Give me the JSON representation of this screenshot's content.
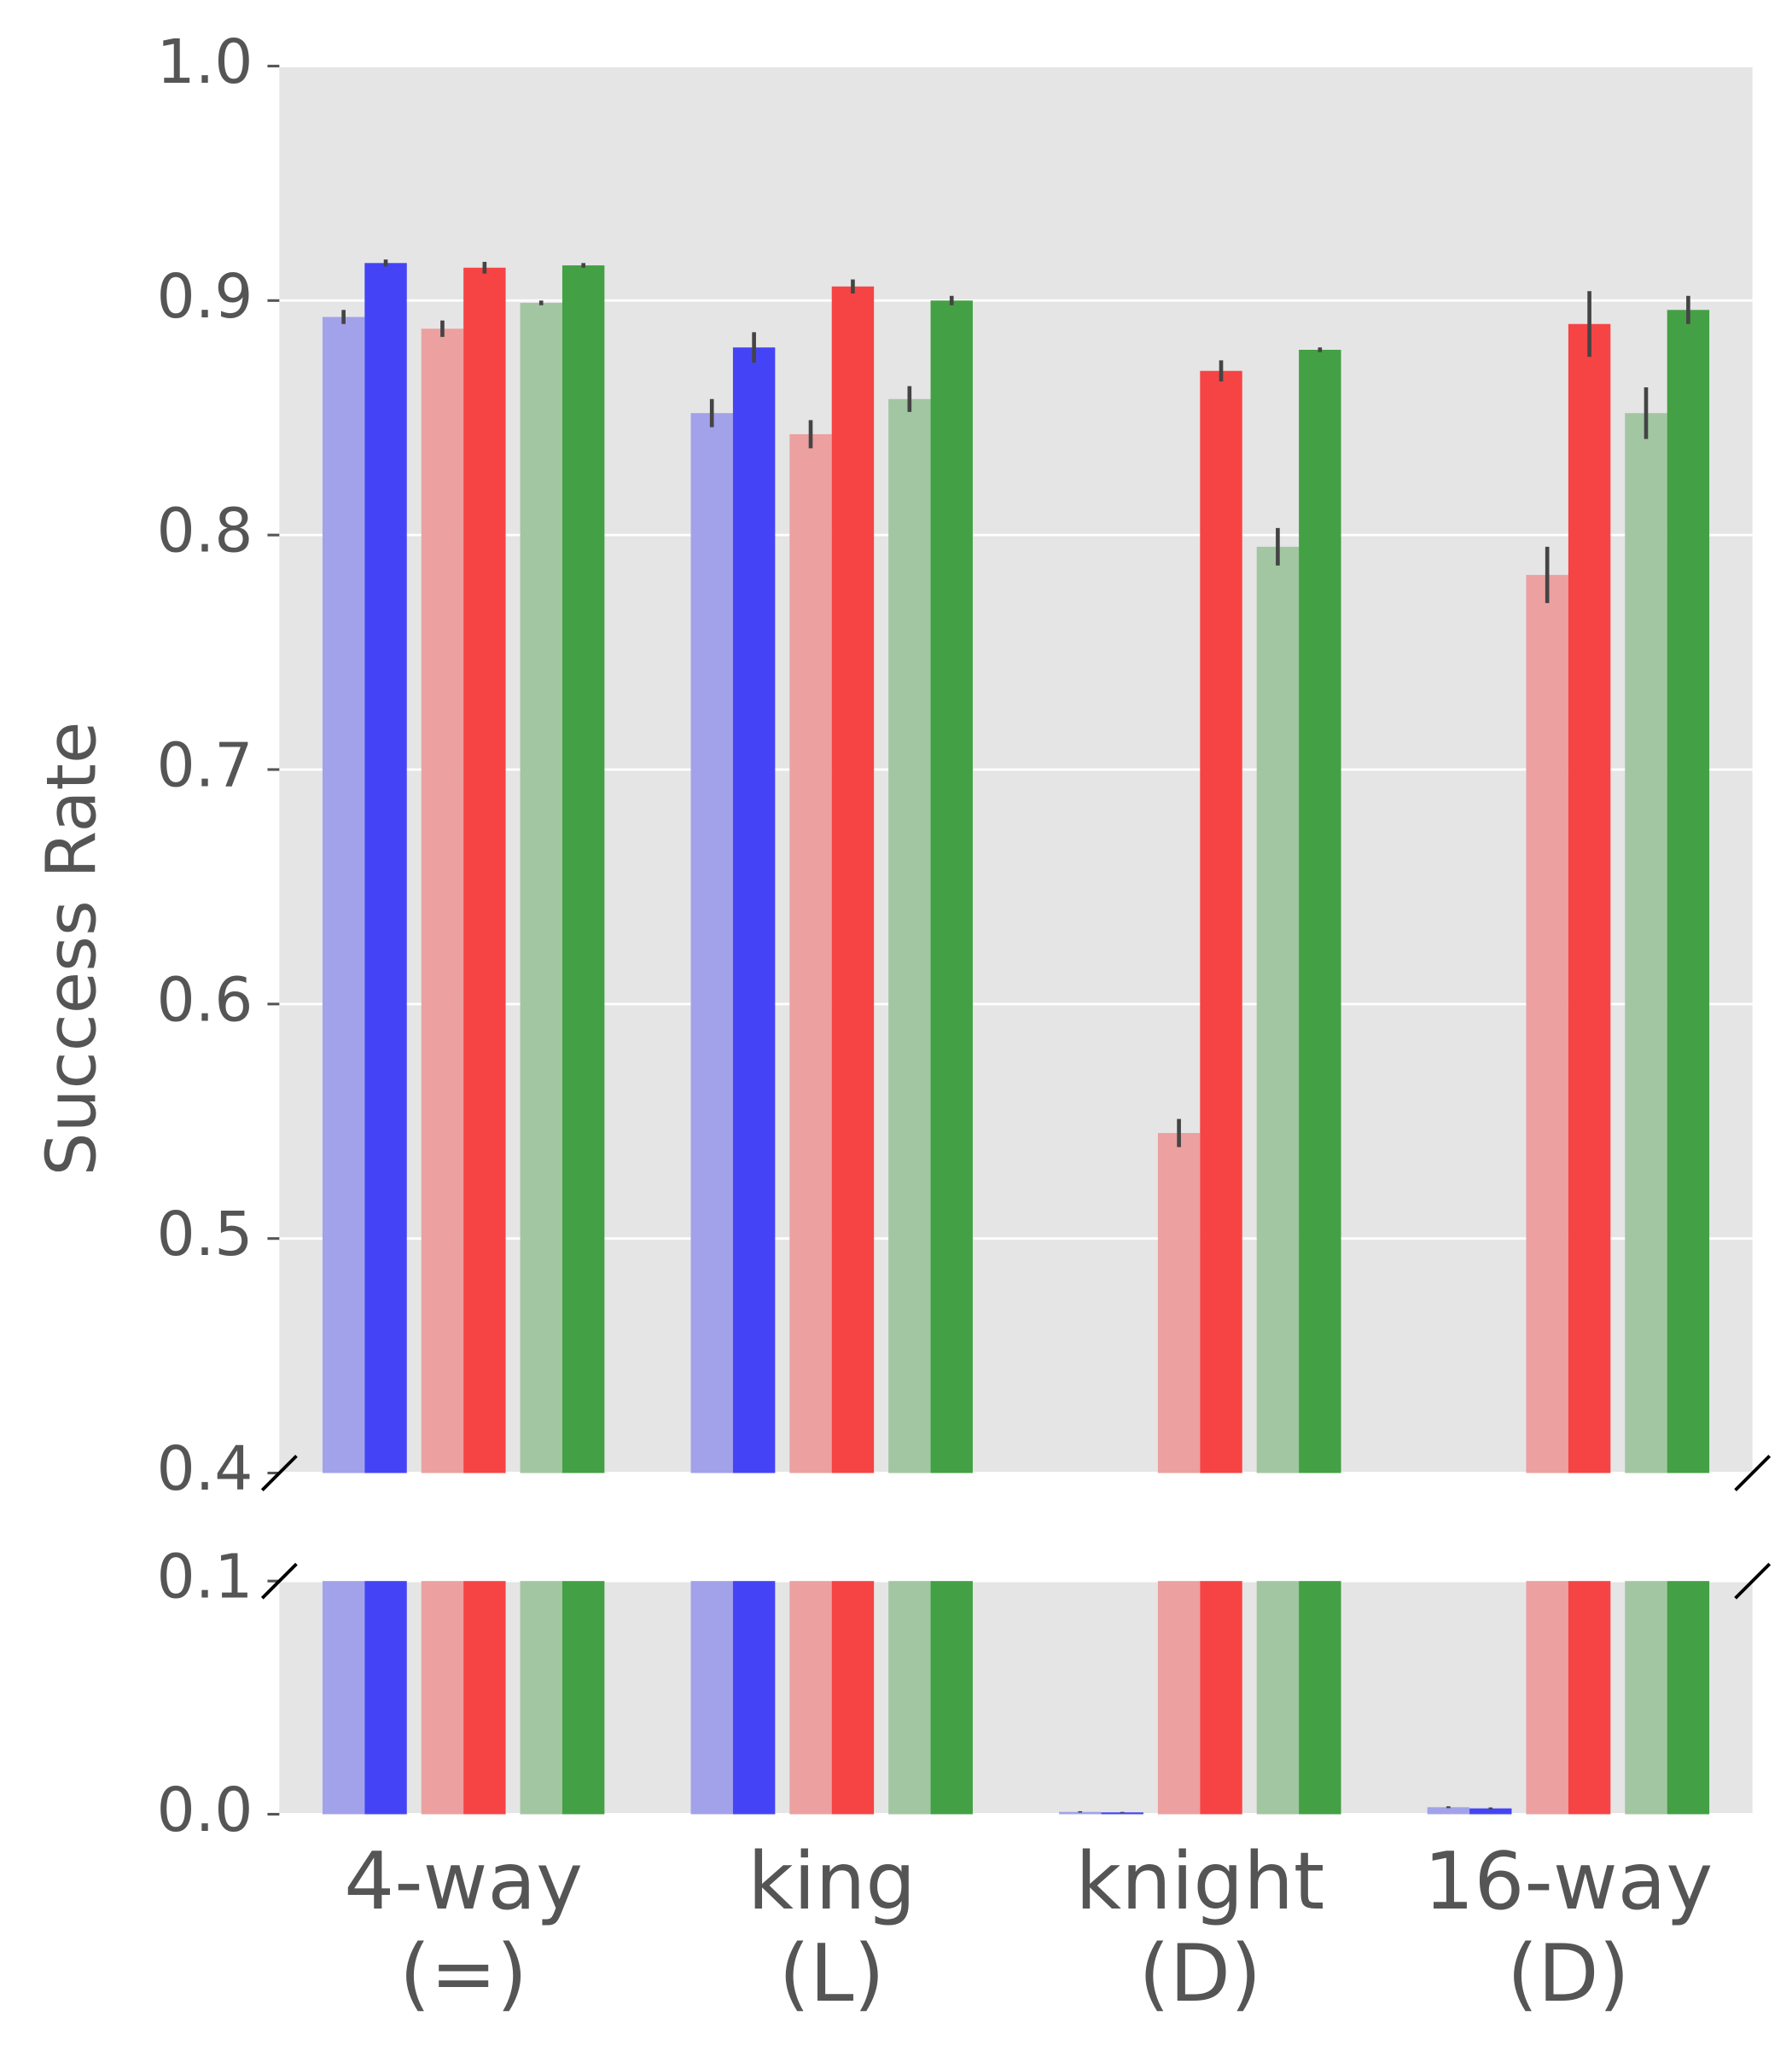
{
  "chart_data": {
    "type": "bar",
    "y_label": "Success Rate",
    "categories": [
      [
        "4-way",
        "(=)"
      ],
      [
        "king",
        "(L)"
      ],
      [
        "knight",
        "(D)"
      ],
      [
        "16-way",
        "(D)"
      ]
    ],
    "series": [
      {
        "color": "#a2a2ea",
        "values": [
          0.893,
          0.852,
          0.001,
          0.003
        ],
        "errors": [
          0.003,
          0.006,
          0.0003,
          0.0004
        ]
      },
      {
        "color": "#4444f6",
        "values": [
          0.916,
          0.88,
          0.0008,
          0.0025
        ],
        "errors": [
          0.0015,
          0.0065,
          0.0002,
          0.0004
        ]
      },
      {
        "color": "#eca0a0",
        "values": [
          0.888,
          0.843,
          0.545,
          0.783
        ],
        "errors": [
          0.0035,
          0.006,
          0.006,
          0.012
        ]
      },
      {
        "color": "#f64444",
        "values": [
          0.914,
          0.906,
          0.87,
          0.89
        ],
        "errors": [
          0.0025,
          0.003,
          0.0045,
          0.014
        ]
      },
      {
        "color": "#a2c6a2",
        "values": [
          0.899,
          0.858,
          0.795,
          0.852
        ],
        "errors": [
          0.001,
          0.0055,
          0.008,
          0.011
        ]
      },
      {
        "color": "#44a044",
        "values": [
          0.915,
          0.9,
          0.879,
          0.896
        ],
        "errors": [
          0.001,
          0.002,
          0.001,
          0.006
        ]
      }
    ],
    "panels": [
      {
        "ylim": [
          0.4,
          1.0
        ],
        "yticks": [
          0.4,
          0.5,
          0.6,
          0.7,
          0.8,
          0.9,
          {
            "value": 1,
            "label": "1.0"
          }
        ]
      },
      {
        "ylim": [
          0,
          0.1
        ],
        "yticks": [
          {
            "value": 0,
            "label": "0.0"
          },
          0.1
        ]
      }
    ],
    "grid": true
  }
}
